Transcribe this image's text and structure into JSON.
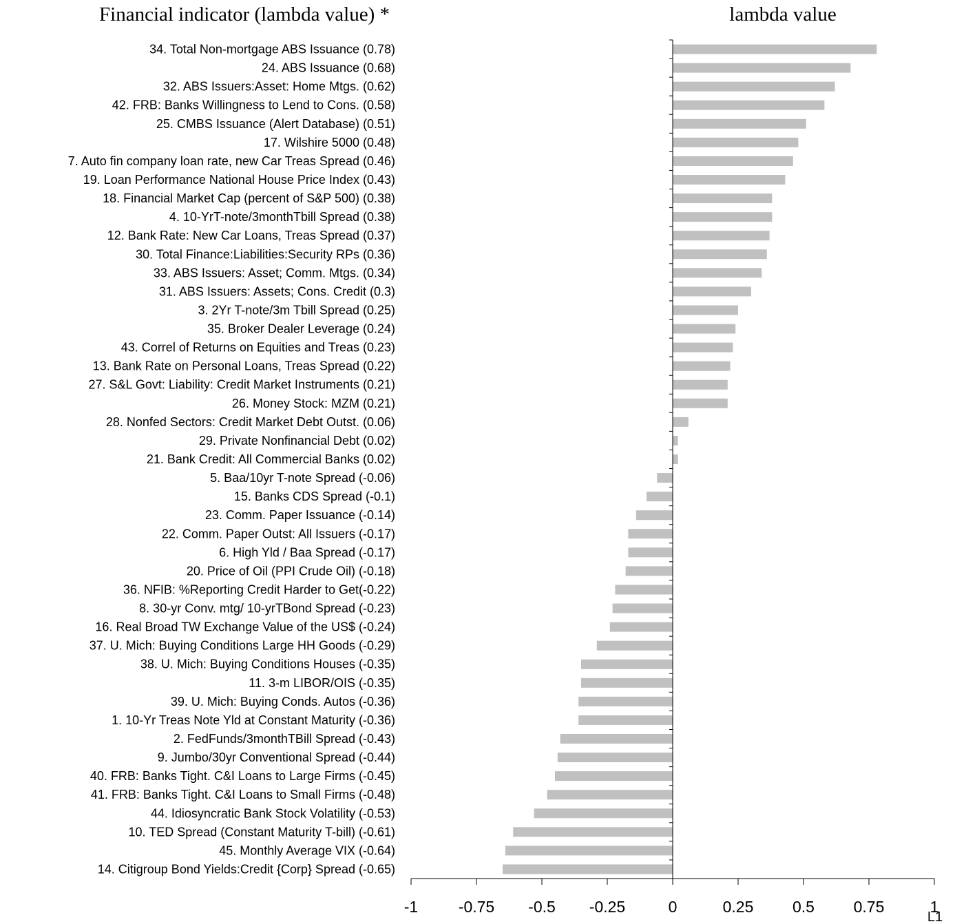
{
  "headers": {
    "left": "Financial indicator  (lambda value) *",
    "right": "lambda value"
  },
  "corner_label": "L1",
  "chart_data": {
    "type": "bar",
    "orientation": "horizontal",
    "categories": [
      "34. Total Non-mortgage ABS Issuance (0.78)",
      "24. ABS Issuance (0.68)",
      "32. ABS Issuers:Asset: Home Mtgs. (0.62)",
      "42. FRB: Banks Willingness to Lend to Cons. (0.58)",
      "25. CMBS Issuance (Alert Database)  (0.51)",
      "17. Wilshire 5000 (0.48)",
      "7. Auto fin company loan rate, new Car Treas Spread (0.46)",
      "19. Loan Performance National House Price Index (0.43)",
      "18. Financial Market Cap (percent of S&P 500) (0.38)",
      "4. 10-YrT-note/3monthTbill Spread (0.38)",
      "12. Bank Rate: New Car Loans, Treas Spread (0.37)",
      "30. Total Finance:Liabilities:Security RPs (0.36)",
      "33. ABS Issuers: Asset; Comm. Mtgs. (0.34)",
      "31. ABS Issuers: Assets; Cons. Credit (0.3)",
      "3. 2Yr T-note/3m Tbill Spread (0.25)",
      "35. Broker Dealer Leverage (0.24)",
      "43. Correl of Returns on Equities and Treas (0.23)",
      "13. Bank Rate on Personal Loans, Treas Spread (0.22)",
      "27. S&L Govt: Liability: Credit Market Instruments (0.21)",
      "26. Money Stock: MZM (0.21)",
      "28. Nonfed Sectors: Credit Market Debt Outst. (0.06)",
      "29. Private Nonfinancial Debt (0.02)",
      "21. Bank Credit: All Commercial Banks (0.02)",
      "5. Baa/10yr T-note Spread (-0.06)",
      "15. Banks CDS Spread (-0.1)",
      "23. Comm. Paper Issuance  (-0.14)",
      "22. Comm. Paper Outst: All Issuers (-0.17)",
      "6. High Yld / Baa Spread (-0.17)",
      "20. Price of Oil  (PPI Crude Oil) (-0.18)",
      "36. NFIB: %Reporting Credit Harder to Get(-0.22)",
      "8. 30-yr Conv. mtg/ 10-yrTBond Spread (-0.23)",
      "16. Real Broad TW Exchange Value of the US$ (-0.24)",
      "37. U. Mich: Buying Conditions Large HH Goods (-0.29)",
      "38. U. Mich: Buying Conditions Houses (-0.35)",
      "11. 3-m LIBOR/OIS (-0.35)",
      "39. U. Mich: Buying Conds. Autos (-0.36)",
      "1. 10-Yr Treas Note Yld at Constant Maturity (-0.36)",
      "2. FedFunds/3monthTBill Spread (-0.43)",
      "9. Jumbo/30yr Conventional Spread (-0.44)",
      "40. FRB: Banks Tight. C&I Loans to Large Firms (-0.45)",
      "41. FRB: Banks Tight. C&I Loans to Small Firms (-0.48)",
      "44. Idiosyncratic Bank Stock Volatility (-0.53)",
      "10. TED Spread (Constant Maturity T-bill) (-0.61)",
      "45. Monthly Average VIX  (-0.64)",
      "14. Citigroup Bond Yields:Credit {Corp} Spread (-0.65)"
    ],
    "values": [
      0.78,
      0.68,
      0.62,
      0.58,
      0.51,
      0.48,
      0.46,
      0.43,
      0.38,
      0.38,
      0.37,
      0.36,
      0.34,
      0.3,
      0.25,
      0.24,
      0.23,
      0.22,
      0.21,
      0.21,
      0.06,
      0.02,
      0.02,
      -0.06,
      -0.1,
      -0.14,
      -0.17,
      -0.17,
      -0.18,
      -0.22,
      -0.23,
      -0.24,
      -0.29,
      -0.35,
      -0.35,
      -0.36,
      -0.36,
      -0.43,
      -0.44,
      -0.45,
      -0.48,
      -0.53,
      -0.61,
      -0.64,
      -0.65
    ],
    "xlim": [
      -1,
      1
    ],
    "xticks": [
      -1,
      -0.75,
      -0.5,
      -0.25,
      0,
      0.25,
      0.5,
      0.75,
      1
    ],
    "xtick_labels": [
      "-1",
      "-0.75",
      "-0.5",
      "-0.25",
      "0",
      "0.25",
      "0.5",
      "0.75",
      "1"
    ],
    "bar_color": "#c0c0c0",
    "grid": false,
    "legend": "none"
  }
}
